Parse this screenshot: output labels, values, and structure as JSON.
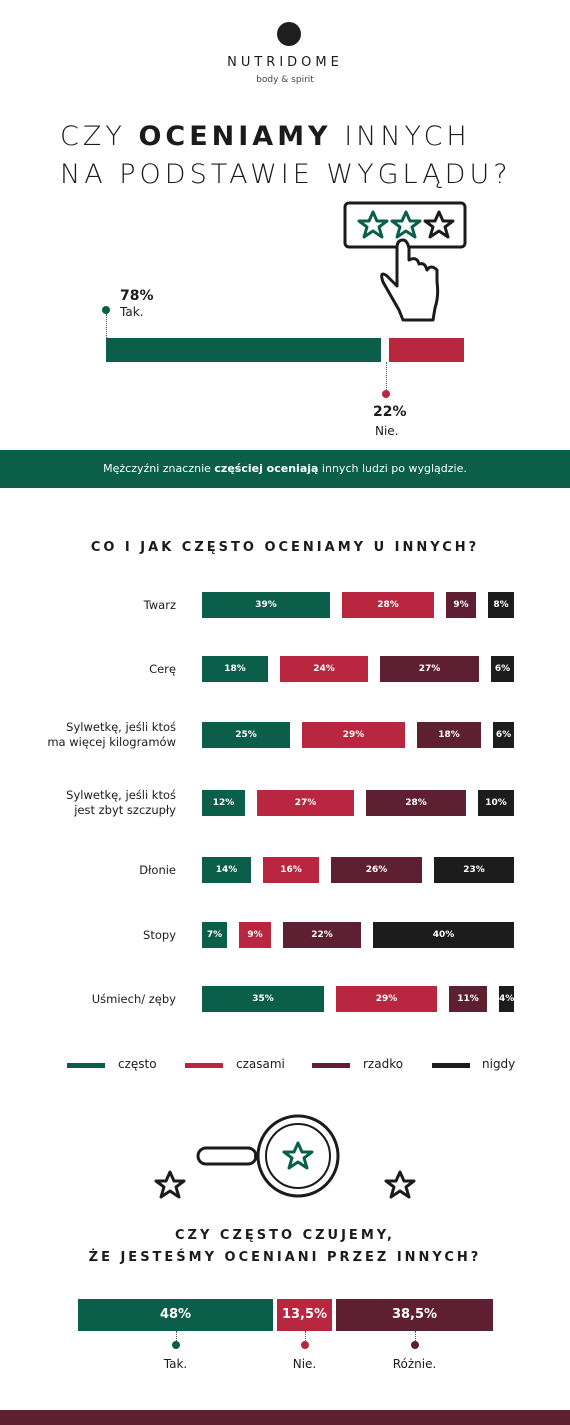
{
  "brand": {
    "name": "NUTRIDOME",
    "tagline": "body & spirit"
  },
  "headline": {
    "part1": "CZY ",
    "emph": "OCENIAMY",
    "part2": " INNYCH",
    "line2": "NA PODSTAWIE WYGLĄDU?"
  },
  "section1": {
    "yes": {
      "pct": "78%",
      "label": "Tak.",
      "value": 78
    },
    "no": {
      "pct": "22%",
      "label": "Nie.",
      "value": 22
    }
  },
  "banner": {
    "before": "Mężczyźni znacznie ",
    "emph": "częściej oceniają",
    "after": " innych ludzi po wyglądzie."
  },
  "section2_title": "CO I JAK CZĘSTO OCENIAMY U INNYCH?",
  "legend": [
    "często",
    "czasami",
    "rzadko",
    "nigdy"
  ],
  "colors": {
    "often": "#0b5e4a",
    "sometimes": "#b8263f",
    "rarely": "#5e1f33",
    "never": "#1c1c1c"
  },
  "section3": {
    "title_line1": "CZY CZĘSTO CZUJEMY,",
    "title_line2": "ŻE JESTEŚMY OCENIANI PRZEZ INNYCH?",
    "labels": [
      "Tak.",
      "Nie.",
      "Różnie."
    ],
    "pct_labels": [
      "48%",
      "13,5%",
      "38,5%"
    ]
  },
  "chart_data": [
    {
      "type": "bar",
      "categories": [
        "Tak.",
        "Nie."
      ],
      "values": [
        78,
        22
      ]
    },
    {
      "type": "bar",
      "title": "CO I JAK CZĘSTO OCENIAMY U INNYCH?",
      "categories": [
        "Twarz",
        "Cerę",
        "Sylwetkę, jeśli ktoś ma więcej kilogramów",
        "Sylwetkę, jeśli ktoś jest zbyt szczupły",
        "Dłonie",
        "Stopy",
        "Uśmiech/ zęby"
      ],
      "series": [
        {
          "name": "często",
          "values": [
            39,
            18,
            25,
            12,
            14,
            7,
            35
          ]
        },
        {
          "name": "czasami",
          "values": [
            28,
            24,
            29,
            27,
            16,
            9,
            29
          ]
        },
        {
          "name": "rzadko",
          "values": [
            9,
            27,
            18,
            28,
            26,
            22,
            11
          ]
        },
        {
          "name": "nigdy",
          "values": [
            8,
            6,
            6,
            10,
            23,
            40,
            4
          ]
        }
      ],
      "legend": "bottom"
    },
    {
      "type": "bar",
      "title": "CZY CZĘSTO CZUJEMY, ŻE JESTEŚMY OCENIANI PRZEZ INNYCH?",
      "categories": [
        "Tak.",
        "Nie.",
        "Różnie."
      ],
      "values": [
        48,
        13.5,
        38.5
      ]
    }
  ]
}
